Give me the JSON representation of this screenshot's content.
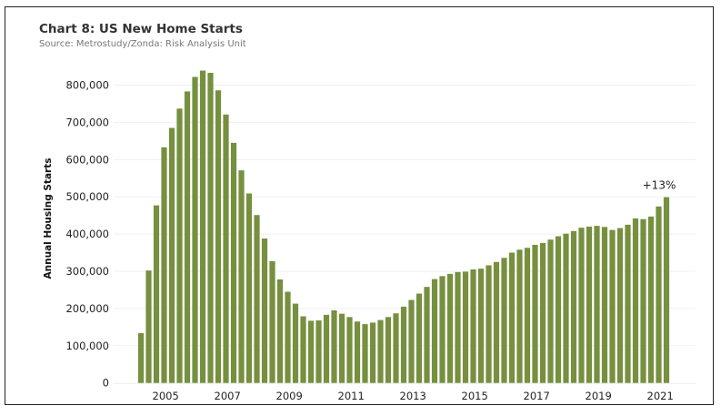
{
  "chart_data": {
    "type": "bar",
    "title": "Chart 8: US New Home Starts",
    "subtitle": "Source: Metrostudy/Zonda: Risk Analysis Unit",
    "xlabel": "",
    "ylabel": "Annual Housing Starts",
    "ylim": [
      0,
      850000
    ],
    "grid": true,
    "color": "#76903f",
    "frequency": "quarterly",
    "start": "2004 Q1",
    "end": "2021 Q1",
    "x_ticks": [
      "2005",
      "2007",
      "2009",
      "2011",
      "2013",
      "2015",
      "2017",
      "2019",
      "2021"
    ],
    "y_ticks": [
      {
        "value": 0,
        "label": "0"
      },
      {
        "value": 100000,
        "label": "100,000"
      },
      {
        "value": 200000,
        "label": "200,000"
      },
      {
        "value": 300000,
        "label": "300,000"
      },
      {
        "value": 400000,
        "label": "400,000"
      },
      {
        "value": 500000,
        "label": "500,000"
      },
      {
        "value": 600000,
        "label": "600,000"
      },
      {
        "value": 700000,
        "label": "700,000"
      },
      {
        "value": 800000,
        "label": "800,000"
      }
    ],
    "values": [
      134000,
      302000,
      477000,
      633000,
      685000,
      737000,
      783000,
      822000,
      839000,
      833000,
      786000,
      721000,
      645000,
      571000,
      509000,
      451000,
      388000,
      327000,
      278000,
      245000,
      213000,
      179000,
      167000,
      168000,
      183000,
      195000,
      186000,
      177000,
      165000,
      158000,
      162000,
      169000,
      177000,
      187000,
      205000,
      223000,
      240000,
      258000,
      279000,
      287000,
      293000,
      298000,
      299000,
      305000,
      307000,
      316000,
      325000,
      336000,
      350000,
      358000,
      363000,
      371000,
      376000,
      385000,
      394000,
      401000,
      408000,
      417000,
      420000,
      422000,
      419000,
      411000,
      416000,
      425000,
      442000,
      440000,
      447000,
      474000,
      499000
    ],
    "annotations": [
      {
        "text": "+13%",
        "at": "last bar"
      }
    ]
  }
}
